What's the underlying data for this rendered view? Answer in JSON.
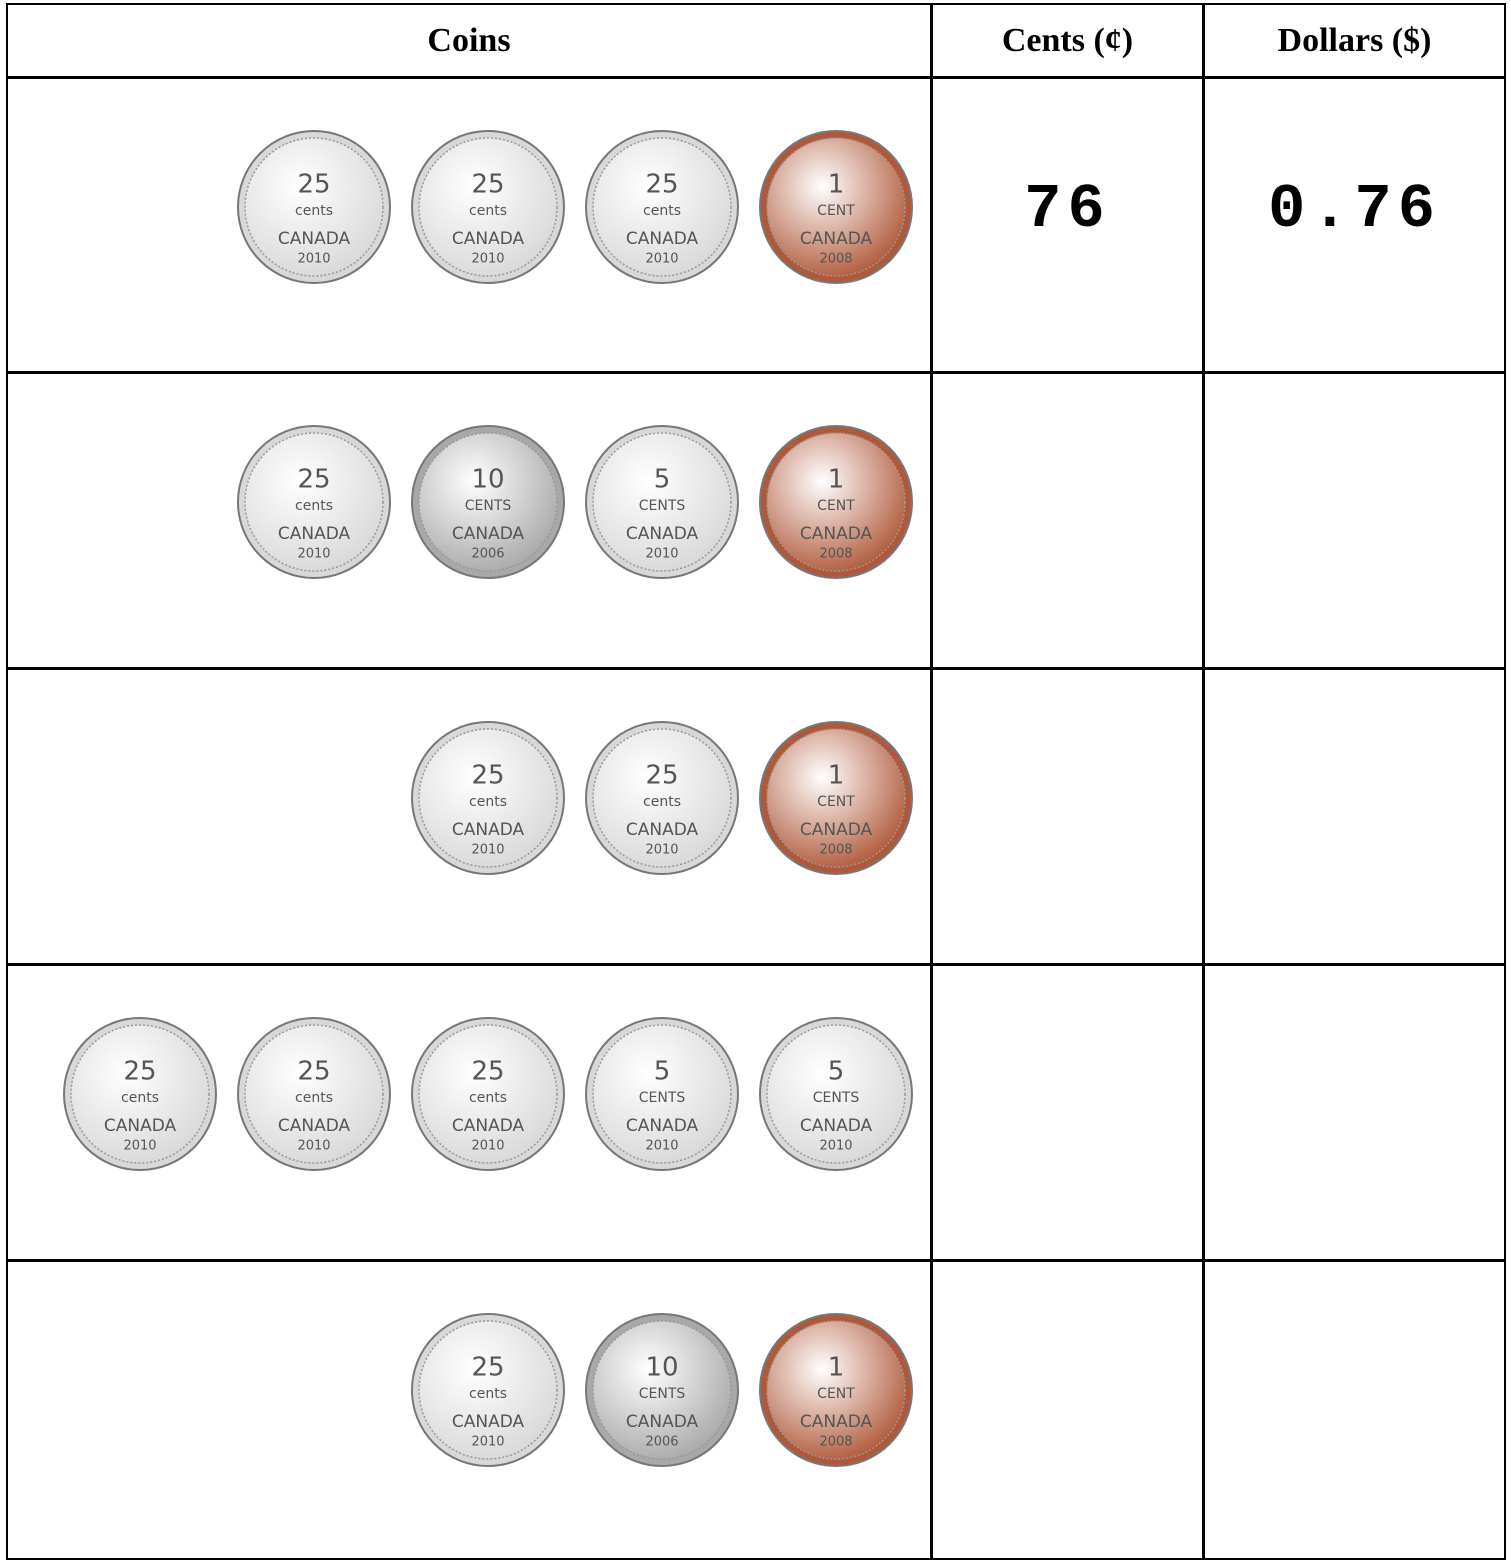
{
  "table": {
    "header": [
      "Coins",
      "Cents (¢)",
      "Dollars ($)"
    ],
    "rows": [
      {
        "coins": [
          {
            "value": "25",
            "unit": "cents",
            "country": "CANADA",
            "year": "2010",
            "color": "#d8d8d8"
          },
          {
            "value": "25",
            "unit": "cents",
            "country": "CANADA",
            "year": "2010",
            "color": "#d8d8d8"
          },
          {
            "value": "25",
            "unit": "cents",
            "country": "CANADA",
            "year": "2010",
            "color": "#d8d8d8"
          },
          {
            "value": "1",
            "unit": "CENT",
            "country": "CANADA",
            "year": "2008",
            "color": "#b0593a"
          }
        ],
        "cents": 76,
        "dollars": 0.76
      },
      {
        "coins": [
          {
            "value": "25",
            "unit": "cents",
            "country": "CANADA",
            "year": "2010",
            "color": "#d8d8d8"
          },
          {
            "value": "10",
            "unit": "CENTS",
            "country": "CANADA",
            "year": "2006",
            "color": "#a8a8a8"
          },
          {
            "value": "5",
            "unit": "CENTS",
            "country": "CANADA",
            "year": "2010",
            "color": "#d8d8d8"
          },
          {
            "value": "1",
            "unit": "CENT",
            "country": "CANADA",
            "year": "2008",
            "color": "#b0593a"
          }
        ]
      },
      {
        "coins": [
          {
            "value": "25",
            "unit": "cents",
            "country": "CANADA",
            "year": "2010",
            "color": "#d8d8d8"
          },
          {
            "value": "25",
            "unit": "cents",
            "country": "CANADA",
            "year": "2010",
            "color": "#d8d8d8"
          },
          {
            "value": "1",
            "unit": "CENT",
            "country": "CANADA",
            "year": "2008",
            "color": "#b0593a"
          }
        ]
      },
      {
        "coins": [
          {
            "value": "25",
            "unit": "cents",
            "country": "CANADA",
            "year": "2010",
            "color": "#d8d8d8"
          },
          {
            "value": "25",
            "unit": "cents",
            "country": "CANADA",
            "year": "2010",
            "color": "#d8d8d8"
          },
          {
            "value": "25",
            "unit": "cents",
            "country": "CANADA",
            "year": "2010",
            "color": "#d8d8d8"
          },
          {
            "value": "5",
            "unit": "CENTS",
            "country": "CANADA",
            "year": "2010",
            "color": "#d8d8d8"
          },
          {
            "value": "5",
            "unit": "CENTS",
            "country": "CANADA",
            "year": "2010",
            "color": "#d8d8d8"
          }
        ]
      },
      {
        "coins": [
          {
            "value": "25",
            "unit": "cents",
            "country": "CANADA",
            "year": "2010",
            "color": "#d8d8d8"
          },
          {
            "value": "10",
            "unit": "CENTS",
            "country": "CANADA",
            "year": "2006",
            "color": "#a8a8a8"
          },
          {
            "value": "1",
            "unit": "CENT",
            "country": "CANADA",
            "year": "2008",
            "color": "#b0593a"
          }
        ]
      }
    ]
  }
}
